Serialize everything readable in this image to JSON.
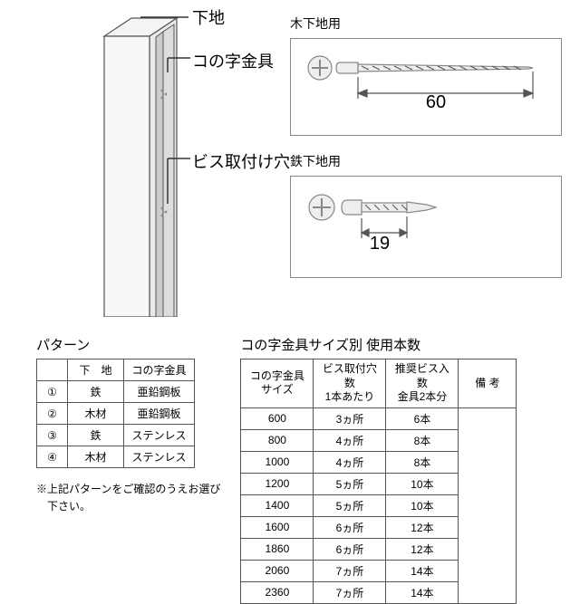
{
  "labels": {
    "substrate": "下地",
    "bracket": "コの字金具",
    "holes": "ビス取付け穴",
    "wood_screw": "木下地用",
    "iron_screw": "鉄下地用",
    "wood_len": "60",
    "iron_len": "19"
  },
  "pattern": {
    "title": "パターン",
    "headers": [
      "",
      "下　地",
      "コの字金具"
    ],
    "rows": [
      [
        "①",
        "鉄",
        "亜鉛鋼板"
      ],
      [
        "②",
        "木材",
        "亜鉛鋼板"
      ],
      [
        "③",
        "鉄",
        "ステンレス"
      ],
      [
        "④",
        "木材",
        "ステンレス"
      ]
    ],
    "note1": "※上記パターンをご確認のうえお選び",
    "note2": "　下さい。"
  },
  "sizes": {
    "title": "コの字金具サイズ別 使用本数",
    "headers": [
      "コの字金具\nサイズ",
      "ビス取付穴数\n1本あたり",
      "推奨ビス入数\n金具2本分",
      "備 考"
    ],
    "rows": [
      [
        "600",
        "3ヵ所",
        "6本",
        ""
      ],
      [
        "800",
        "4ヵ所",
        "8本",
        ""
      ],
      [
        "1000",
        "4ヵ所",
        "8本",
        ""
      ],
      [
        "1200",
        "5ヵ所",
        "10本",
        ""
      ],
      [
        "1400",
        "5ヵ所",
        "10本",
        ""
      ],
      [
        "1600",
        "6ヵ所",
        "12本",
        ""
      ],
      [
        "1860",
        "6ヵ所",
        "12本",
        ""
      ],
      [
        "2060",
        "7ヵ所",
        "14本",
        ""
      ],
      [
        "2360",
        "7ヵ所",
        "14本",
        ""
      ]
    ]
  },
  "colors": {
    "line": "#555",
    "fill": "#e8e8e8"
  }
}
